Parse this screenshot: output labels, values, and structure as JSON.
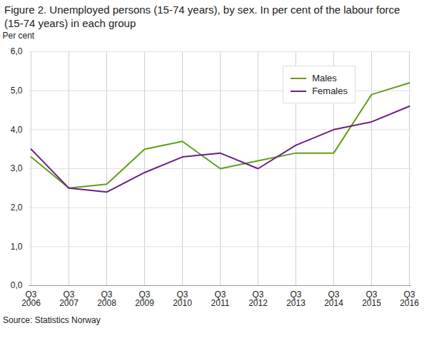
{
  "chart_data": {
    "type": "line",
    "title": "Figure 2. Unemployed persons (15-74 years), by sex. In per cent of the labour force (15-74 years) in each group",
    "y_label": "Per cent",
    "source": "Source: Statistics Norway",
    "categories": [
      "Q3 2006",
      "Q3 2007",
      "Q3 2008",
      "Q3 2009",
      "Q3 2010",
      "Q3 2011",
      "Q3 2012",
      "Q3 2013",
      "Q3 2014",
      "Q3 2015",
      "Q3 2016"
    ],
    "series": [
      {
        "name": "Males",
        "color": "#5f9e1b",
        "values": [
          3.3,
          2.5,
          2.6,
          3.5,
          3.7,
          3.0,
          3.2,
          3.4,
          3.4,
          4.9,
          5.2
        ]
      },
      {
        "name": "Females",
        "color": "#6b1e87",
        "values": [
          3.5,
          2.5,
          2.4,
          2.9,
          3.3,
          3.4,
          3.0,
          3.6,
          4.0,
          4.2,
          4.6
        ]
      }
    ],
    "ylim": [
      0,
      6
    ],
    "yticks": [
      {
        "value": 0,
        "label": "0,0"
      },
      {
        "value": 1,
        "label": "1,0"
      },
      {
        "value": 2,
        "label": "2,0"
      },
      {
        "value": 3,
        "label": "3,0"
      },
      {
        "value": 4,
        "label": "4,0"
      },
      {
        "value": 5,
        "label": "5,0"
      },
      {
        "value": 6,
        "label": "6,0"
      }
    ],
    "grid": true,
    "legend": "top-right"
  }
}
